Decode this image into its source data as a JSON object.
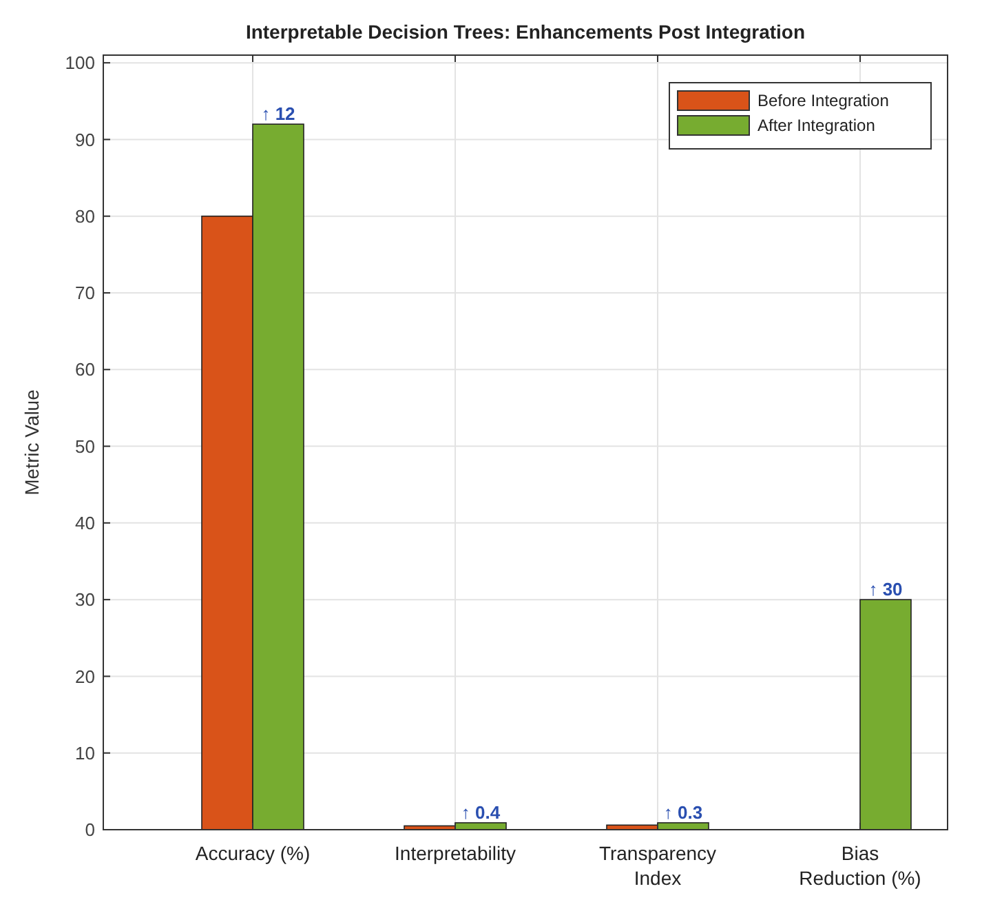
{
  "chart_data": {
    "type": "bar",
    "title": "Interpretable Decision Trees: Enhancements Post Integration",
    "ylabel": "Metric Value",
    "categories": [
      "Accuracy (%)",
      "Interpretability",
      "Transparency Index",
      "Bias Reduction (%)"
    ],
    "series": [
      {
        "name": "Before Integration",
        "color": "#d95319",
        "values": [
          80,
          0.5,
          0.6,
          0
        ]
      },
      {
        "name": "After Integration",
        "color": "#77ac30",
        "values": [
          92,
          0.9,
          0.9,
          30
        ]
      }
    ],
    "ylim": [
      0,
      101
    ],
    "yticks": [
      0,
      10,
      20,
      30,
      40,
      50,
      60,
      70,
      80,
      90,
      100
    ],
    "grid": true,
    "legend": "top right",
    "annotations": [
      {
        "text": "↑ 12",
        "x": "Accuracy (%)",
        "y": 92
      },
      {
        "text": "↑ 0.4",
        "x": "Interpretability",
        "y": 0.9
      },
      {
        "text": "↑ 0.3",
        "x": "Transparency Index",
        "y": 0.9
      },
      {
        "text": "↑ 30",
        "x": "Bias Reduction (%)",
        "y": 30
      }
    ]
  }
}
